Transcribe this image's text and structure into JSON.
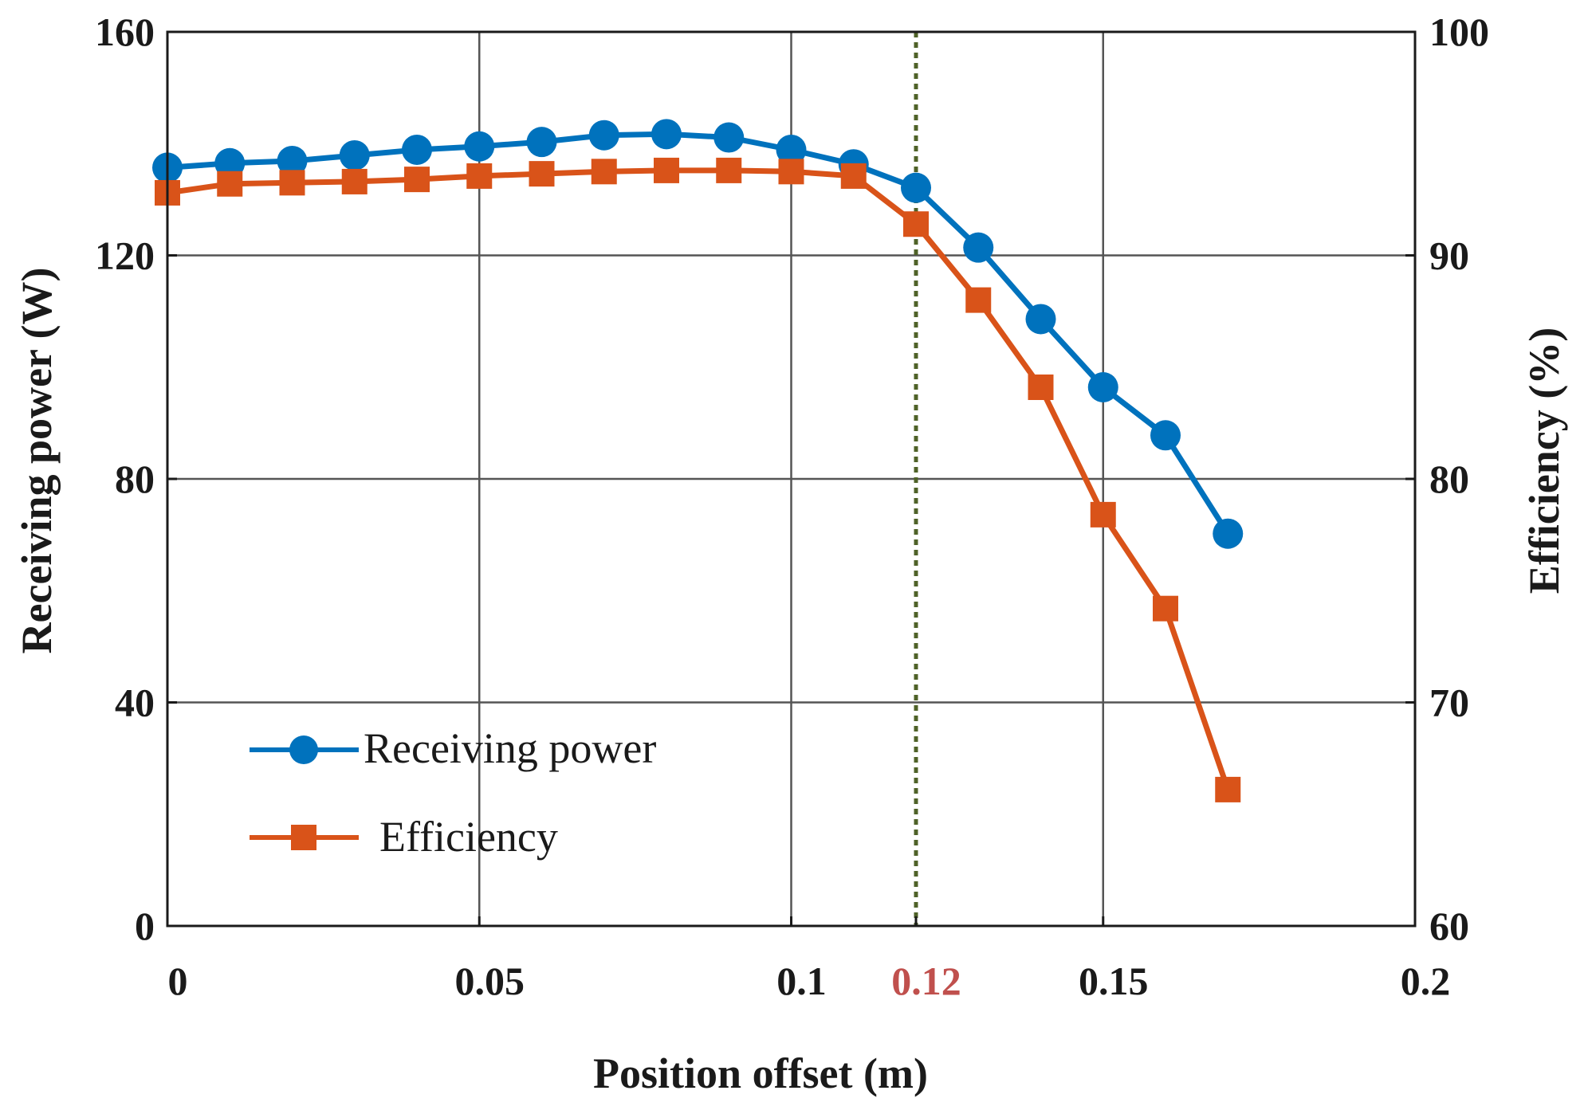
{
  "chart_data": {
    "type": "line",
    "title": "",
    "xlabel": "Position offset (m)",
    "ylabel_left": "Receiving power (W)",
    "ylabel_right": "Efficiency (%)",
    "xlim": [
      0,
      0.2
    ],
    "ylim_left": [
      0,
      160
    ],
    "ylim_right": [
      60,
      100
    ],
    "x_ticks": [
      {
        "value": 0,
        "label": "0",
        "highlight": false
      },
      {
        "value": 0.05,
        "label": "0.05",
        "highlight": false
      },
      {
        "value": 0.1,
        "label": "0.1",
        "highlight": false
      },
      {
        "value": 0.12,
        "label": "0.12",
        "highlight": true
      },
      {
        "value": 0.15,
        "label": "0.15",
        "highlight": false
      },
      {
        "value": 0.2,
        "label": "0.2",
        "highlight": false
      }
    ],
    "y_left_ticks": [
      {
        "value": 0,
        "label": "0"
      },
      {
        "value": 40,
        "label": "40"
      },
      {
        "value": 80,
        "label": "80"
      },
      {
        "value": 120,
        "label": "120"
      },
      {
        "value": 160,
        "label": "160"
      }
    ],
    "y_right_ticks": [
      {
        "value": 60,
        "label": "60"
      },
      {
        "value": 70,
        "label": "70"
      },
      {
        "value": 80,
        "label": "80"
      },
      {
        "value": 90,
        "label": "90"
      },
      {
        "value": 100,
        "label": "100"
      }
    ],
    "grid": true,
    "legend_position": "bottom-left",
    "reference_line": {
      "x": 0.12,
      "style": "dotted",
      "color": "#4f6228"
    },
    "highlight_color": "#c0504d",
    "series": [
      {
        "name": "Receiving power",
        "axis": "left",
        "marker": "circle",
        "color": "#0072bd",
        "x": [
          0,
          0.01,
          0.02,
          0.03,
          0.04,
          0.05,
          0.06,
          0.07,
          0.08,
          0.09,
          0.1,
          0.11,
          0.12,
          0.13,
          0.14,
          0.15,
          0.16,
          0.17
        ],
        "values": [
          135.7,
          136.5,
          136.9,
          137.9,
          138.9,
          139.5,
          140.3,
          141.5,
          141.7,
          141.1,
          138.9,
          136.3,
          132.1,
          121.4,
          108.6,
          96.4,
          87.8,
          70.2
        ]
      },
      {
        "name": "Efficiency",
        "axis": "right",
        "marker": "square",
        "color": "#d95319",
        "x": [
          0,
          0.01,
          0.02,
          0.03,
          0.04,
          0.05,
          0.06,
          0.07,
          0.08,
          0.09,
          0.1,
          0.11,
          0.12,
          0.13,
          0.14,
          0.15,
          0.16,
          0.17
        ],
        "values": [
          92.8,
          93.2,
          93.25,
          93.3,
          93.4,
          93.55,
          93.65,
          93.75,
          93.8,
          93.8,
          93.75,
          93.55,
          91.4,
          88.0,
          84.1,
          78.4,
          74.2,
          66.1
        ]
      }
    ]
  }
}
